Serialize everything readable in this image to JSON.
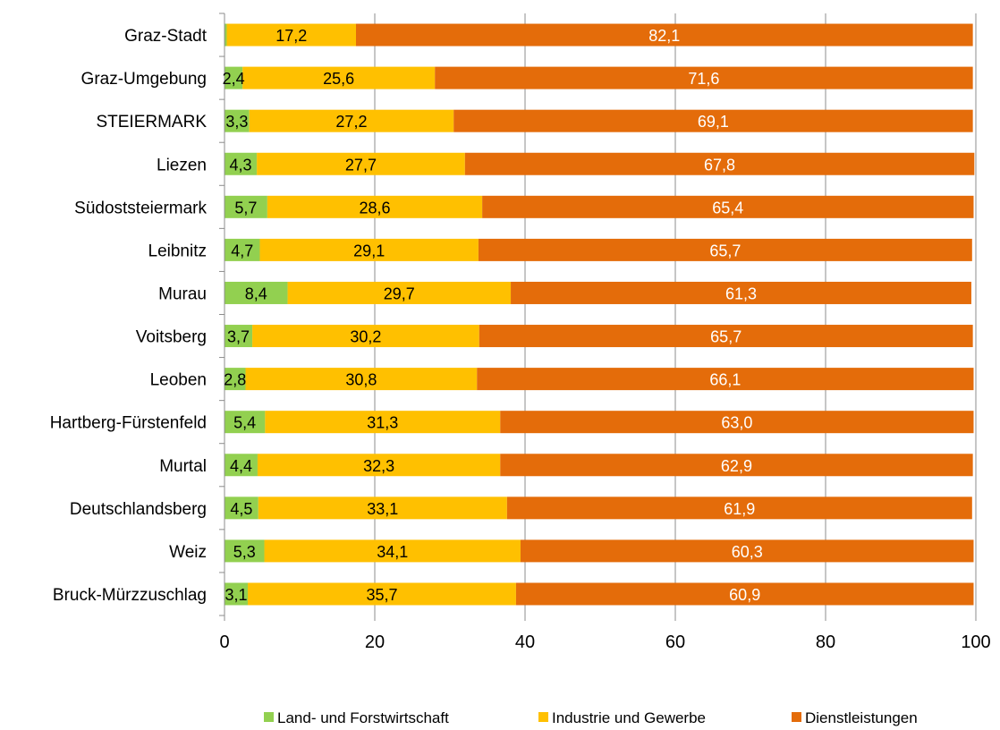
{
  "chart_data": {
    "type": "bar",
    "orientation": "horizontal",
    "stacked": true,
    "title": "",
    "xlabel": "",
    "ylabel": "",
    "xlim": [
      0,
      100
    ],
    "x_ticks": [
      0,
      20,
      40,
      60,
      80,
      100
    ],
    "grid": "vertical gridlines",
    "legend_position": "bottom",
    "categories": [
      "Graz-Stadt",
      "Graz-Umgebung",
      "STEIERMARK",
      "Liezen",
      "Südoststeiermark",
      "Leibnitz",
      "Murau",
      "Voitsberg",
      "Leoben",
      "Hartberg-Fürstenfeld",
      "Murtal",
      "Deutschlandsberg",
      "Weiz",
      "Bruck-Mürzzuschlag"
    ],
    "series": [
      {
        "name": "Land- und Forstwirtschaft",
        "color": "#92D050",
        "values": [
          0.3,
          2.4,
          3.3,
          4.3,
          5.7,
          4.7,
          8.4,
          3.7,
          2.8,
          5.4,
          4.4,
          4.5,
          5.3,
          3.1
        ],
        "labels": [
          "",
          "2,4",
          "3,3",
          "4,3",
          "5,7",
          "4,7",
          "8,4",
          "3,7",
          "2,8",
          "5,4",
          "4,4",
          "4,5",
          "5,3",
          "3,1"
        ],
        "label_color": "#000000"
      },
      {
        "name": "Industrie und Gewerbe",
        "color": "#FFC000",
        "values": [
          17.2,
          25.6,
          27.2,
          27.7,
          28.6,
          29.1,
          29.7,
          30.2,
          30.8,
          31.3,
          32.3,
          33.1,
          34.1,
          35.7
        ],
        "labels": [
          "17,2",
          "25,6",
          "27,2",
          "27,7",
          "28,6",
          "29,1",
          "29,7",
          "30,2",
          "30,8",
          "31,3",
          "32,3",
          "33,1",
          "34,1",
          "35,7"
        ],
        "label_color": "#000000"
      },
      {
        "name": "Dienstleistungen",
        "color": "#E46C0A",
        "values": [
          82.1,
          71.6,
          69.1,
          67.8,
          65.4,
          65.7,
          61.3,
          65.7,
          66.1,
          63.0,
          62.9,
          61.9,
          60.3,
          60.9
        ],
        "labels": [
          "82,1",
          "71,6",
          "69,1",
          "67,8",
          "65,4",
          "65,7",
          "61,3",
          "65,7",
          "66,1",
          "63,0",
          "62,9",
          "61,9",
          "60,3",
          "60,9"
        ],
        "label_color": "#FFFFFF"
      }
    ]
  }
}
